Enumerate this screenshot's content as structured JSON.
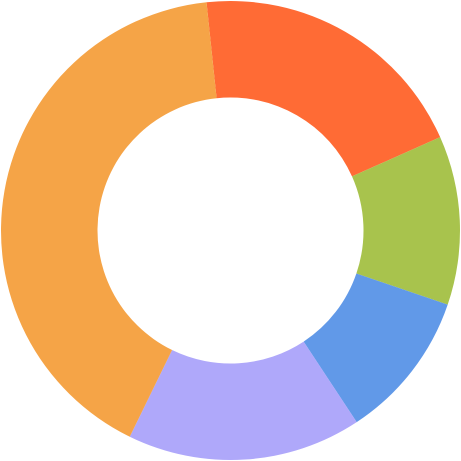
{
  "chart_data": {
    "type": "pie",
    "variant": "donut",
    "title": "",
    "legend": "none",
    "slices": [
      {
        "value": 20.0,
        "color": "#FF6B35"
      },
      {
        "value": 11.9,
        "color": "#A8C34D"
      },
      {
        "value": 10.5,
        "color": "#6199E8"
      },
      {
        "value": 16.5,
        "color": "#AFA8FA"
      },
      {
        "value": 41.1,
        "color": "#F5A447"
      }
    ]
  }
}
